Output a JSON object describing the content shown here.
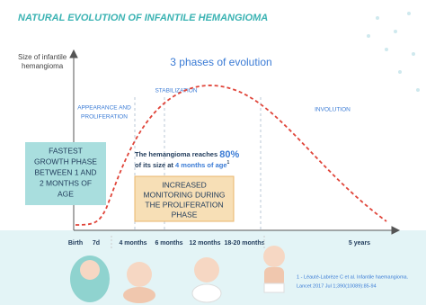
{
  "title": "NATURAL EVOLUTION OF INFANTILE HEMANGIOMA",
  "y_axis_label": [
    "Size of infantile",
    "hemangioma"
  ],
  "heading": "3 phases of evolution",
  "phases": [
    {
      "lines": [
        "APPEARANCE AND",
        "PROLIFERATION"
      ]
    },
    {
      "lines": [
        "STABILIZATION"
      ]
    },
    {
      "lines": [
        "INVOLUTION"
      ]
    }
  ],
  "timeline": [
    "Birth",
    "7d",
    "4 months",
    "6 months",
    "12 months",
    "18-20 months",
    "5 years"
  ],
  "fastest_box": [
    "FASTEST",
    "GROWTH PHASE",
    "BETWEEN 1 AND",
    "2 MONTHS OF",
    "AGE"
  ],
  "callout": {
    "line1_start": "The hemangioma reaches ",
    "line1_value": "80%",
    "line2_start": "of its size at ",
    "line2_value": "4 months of age",
    "line2_ref": "1"
  },
  "monitoring_box": [
    "INCREASED",
    "MONITORING DURING",
    "THE PROLIFERATION",
    "PHASE"
  ],
  "reference": [
    "1 - Léauté-Labrèze C et al. Infantile haemangioma.",
    "Lancet 2017 Jul 1;390(10089):85-94"
  ]
}
